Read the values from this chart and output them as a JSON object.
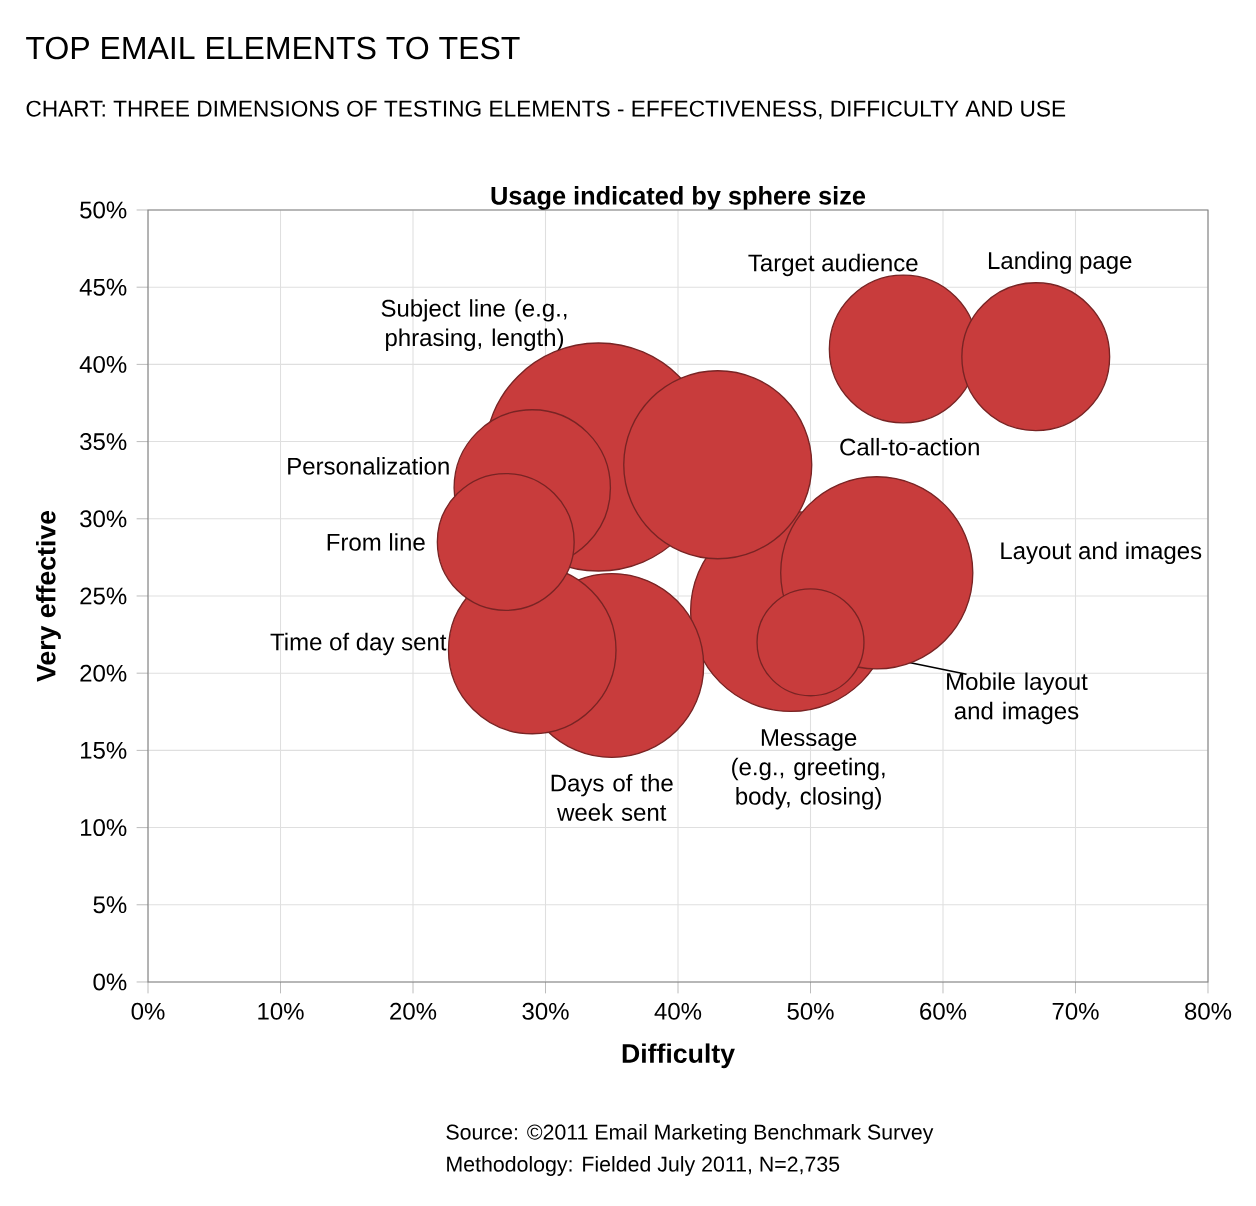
{
  "chart_data": {
    "type": "bubble",
    "title": "TOP EMAIL ELEMENTS TO TEST",
    "subtitle": "CHART: THREE DIMENSIONS OF TESTING ELEMENTS - EFFECTIVENESS, DIFFICULTY AND USE",
    "xlabel": "Difficulty",
    "ylabel": "Very effective",
    "annotations": [
      "Usage indicated by sphere size",
      "Source: ©2011 Email Marketing Benchmark Survey",
      "Methodology: Fielded July 2011, N=2,735"
    ],
    "series": [
      {
        "name": "Subject line (e.g., phrasing, length)",
        "color": "#c83c3c",
        "x": [
          34
        ],
        "values": [
          34
        ],
        "sizes": [
          1.0
        ]
      },
      {
        "name": "Message (e.g., greeting, body, closing)",
        "color": "#c83c3c",
        "x": [
          48.5
        ],
        "values": [
          24
        ],
        "sizes": [
          0.77
        ]
      },
      {
        "name": "Layout and images",
        "color": "#c83c3c",
        "x": [
          55
        ],
        "values": [
          26.5
        ],
        "sizes": [
          0.71
        ]
      },
      {
        "name": "Call-to-action",
        "color": "#c83c3c",
        "x": [
          43
        ],
        "values": [
          33.5
        ],
        "sizes": [
          0.68
        ]
      },
      {
        "name": "Days of the week sent",
        "color": "#c83c3c",
        "x": [
          35
        ],
        "values": [
          20.5
        ],
        "sizes": [
          0.65
        ]
      },
      {
        "name": "Time of day sent",
        "color": "#c83c3c",
        "x": [
          29
        ],
        "values": [
          21.5
        ],
        "sizes": [
          0.54
        ]
      },
      {
        "name": "Personalization",
        "color": "#c83c3c",
        "x": [
          29
        ],
        "values": [
          32
        ],
        "sizes": [
          0.47
        ]
      },
      {
        "name": "Target audience",
        "color": "#c83c3c",
        "x": [
          57
        ],
        "values": [
          41
        ],
        "sizes": [
          0.42
        ]
      },
      {
        "name": "Landing page",
        "color": "#c83c3c",
        "x": [
          67
        ],
        "values": [
          40.5
        ],
        "sizes": [
          0.42
        ]
      },
      {
        "name": "From line",
        "color": "#c83c3c",
        "x": [
          27
        ],
        "values": [
          28.5
        ],
        "sizes": [
          0.36
        ]
      },
      {
        "name": "Mobile layout and images",
        "color": "#c83c3c",
        "x": [
          50
        ],
        "values": [
          22
        ],
        "sizes": [
          0.22
        ]
      }
    ],
    "xlim": [
      0,
      80
    ],
    "ylim": [
      0,
      50
    ],
    "xticks": [
      {
        "value": 0,
        "label": "0%"
      },
      {
        "value": 10,
        "label": "10%"
      },
      {
        "value": 20,
        "label": "20%"
      },
      {
        "value": 30,
        "label": "30%"
      },
      {
        "value": 40,
        "label": "40%"
      },
      {
        "value": 50,
        "label": "50%"
      },
      {
        "value": 60,
        "label": "60%"
      },
      {
        "value": 70,
        "label": "70%"
      },
      {
        "value": 80,
        "label": "80%"
      }
    ],
    "yticks": [
      {
        "value": 0,
        "label": "0%"
      },
      {
        "value": 5,
        "label": "5%"
      },
      {
        "value": 10,
        "label": "10%"
      },
      {
        "value": 15,
        "label": "15%"
      },
      {
        "value": 20,
        "label": "20%"
      },
      {
        "value": 25,
        "label": "25%"
      },
      {
        "value": 30,
        "label": "30%"
      },
      {
        "value": 35,
        "label": "35%"
      },
      {
        "value": 40,
        "label": "40%"
      },
      {
        "value": 45,
        "label": "45%"
      },
      {
        "value": 50,
        "label": "50%"
      }
    ],
    "grid": true
  }
}
